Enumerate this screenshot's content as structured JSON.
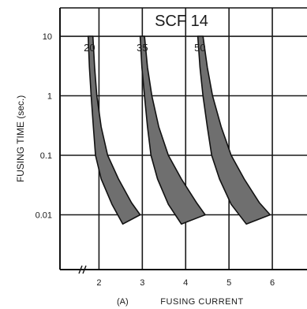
{
  "chart_data": {
    "type": "area",
    "title": "SCF 14",
    "xlabel": "FUSING CURRENT",
    "ylabel": "FUSING TIME (sec.)",
    "panel_label": "(A)",
    "y_scale": "log",
    "x_ticks": [
      "2",
      "3",
      "4",
      "5",
      "6"
    ],
    "y_ticks": [
      "10",
      "1",
      "0.1",
      "0.01"
    ],
    "xlim": [
      1.1,
      6.8
    ],
    "ylim": [
      0.0012,
      30
    ],
    "grid": true,
    "series": [
      {
        "name": "20",
        "upper": [
          [
            1.86,
            10
          ],
          [
            1.9,
            3
          ],
          [
            1.95,
            1
          ],
          [
            2.05,
            0.3
          ],
          [
            2.2,
            0.1
          ],
          [
            2.45,
            0.04
          ],
          [
            2.75,
            0.016
          ],
          [
            2.95,
            0.01
          ]
        ],
        "lower": [
          [
            1.75,
            10
          ],
          [
            1.78,
            3
          ],
          [
            1.82,
            1
          ],
          [
            1.87,
            0.3
          ],
          [
            1.92,
            0.1
          ],
          [
            2.05,
            0.04
          ],
          [
            2.3,
            0.015
          ],
          [
            2.55,
            0.007
          ]
        ]
      },
      {
        "name": "35",
        "upper": [
          [
            3.05,
            10
          ],
          [
            3.12,
            3
          ],
          [
            3.22,
            1
          ],
          [
            3.38,
            0.3
          ],
          [
            3.6,
            0.1
          ],
          [
            3.9,
            0.04
          ],
          [
            4.25,
            0.016
          ],
          [
            4.45,
            0.01
          ]
        ],
        "lower": [
          [
            2.95,
            10
          ],
          [
            2.99,
            3
          ],
          [
            3.05,
            1
          ],
          [
            3.12,
            0.3
          ],
          [
            3.2,
            0.1
          ],
          [
            3.35,
            0.04
          ],
          [
            3.6,
            0.015
          ],
          [
            3.9,
            0.007
          ]
        ]
      },
      {
        "name": "50",
        "upper": [
          [
            4.4,
            10
          ],
          [
            4.5,
            3
          ],
          [
            4.62,
            1
          ],
          [
            4.82,
            0.3
          ],
          [
            5.05,
            0.1
          ],
          [
            5.35,
            0.04
          ],
          [
            5.7,
            0.016
          ],
          [
            5.95,
            0.01
          ]
        ],
        "lower": [
          [
            4.28,
            10
          ],
          [
            4.33,
            3
          ],
          [
            4.4,
            1
          ],
          [
            4.5,
            0.3
          ],
          [
            4.6,
            0.1
          ],
          [
            4.78,
            0.04
          ],
          [
            5.05,
            0.015
          ],
          [
            5.4,
            0.007
          ]
        ]
      }
    ],
    "series_label_x": [
      1.78,
      3.0,
      4.33
    ]
  }
}
